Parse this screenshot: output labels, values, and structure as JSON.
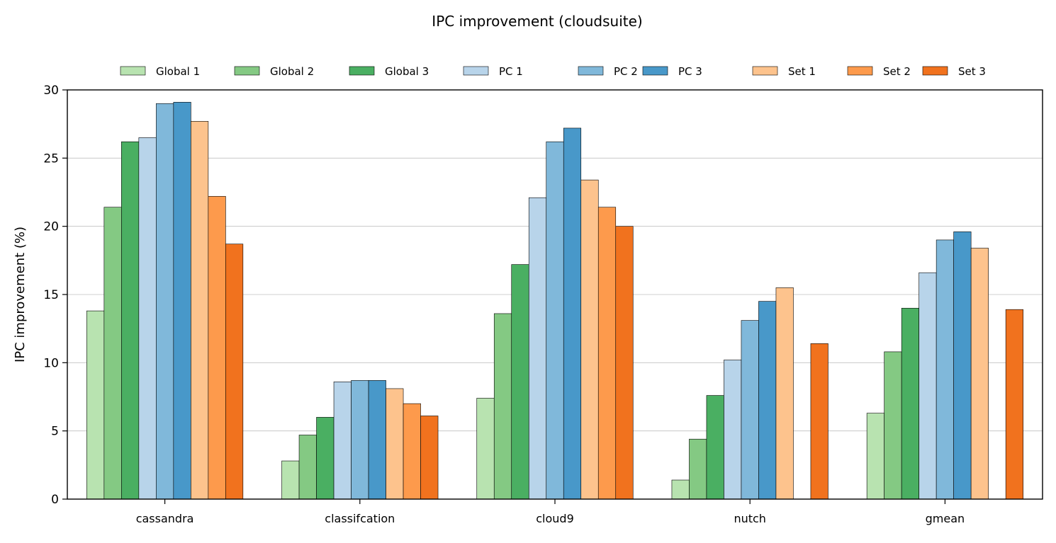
{
  "chart_data": {
    "type": "bar",
    "title": "IPC improvement (cloudsuite)",
    "xlabel": "",
    "ylabel": "IPC improvement (%)",
    "ylim": [
      0,
      30
    ],
    "yticks": [
      0,
      5,
      10,
      15,
      20,
      25,
      30
    ],
    "grid": "y",
    "legend_position": "top",
    "categories": [
      "cassandra",
      "classifcation",
      "cloud9",
      "nutch",
      "gmean"
    ],
    "series": [
      {
        "name": "Global 1",
        "color": "#b8e3b0",
        "values": [
          13.8,
          2.8,
          7.4,
          1.4,
          6.3
        ]
      },
      {
        "name": "Global 2",
        "color": "#84c983",
        "values": [
          21.4,
          4.7,
          13.6,
          4.4,
          10.8
        ]
      },
      {
        "name": "Global 3",
        "color": "#4aaf62",
        "values": [
          26.2,
          6.0,
          17.2,
          7.6,
          14.0
        ]
      },
      {
        "name": "PC 1",
        "color": "#b8d4ea",
        "values": [
          26.5,
          8.6,
          22.1,
          10.2,
          16.6
        ]
      },
      {
        "name": "PC 2",
        "color": "#80b8da",
        "values": [
          29.0,
          8.7,
          26.2,
          13.1,
          19.0
        ]
      },
      {
        "name": "PC 3",
        "color": "#4898c9",
        "values": [
          29.1,
          8.7,
          27.2,
          14.5,
          19.6
        ]
      },
      {
        "name": "Set 1",
        "color": "#fdc38d",
        "values": [
          27.7,
          8.1,
          23.4,
          15.5,
          18.4
        ]
      },
      {
        "name": "Set 2",
        "color": "#fd9a4c",
        "values": [
          22.2,
          7.0,
          21.4,
          0,
          0
        ]
      },
      {
        "name": "Set 3",
        "color": "#f1721e",
        "values": [
          18.7,
          6.1,
          20.0,
          11.4,
          13.9
        ]
      }
    ]
  }
}
